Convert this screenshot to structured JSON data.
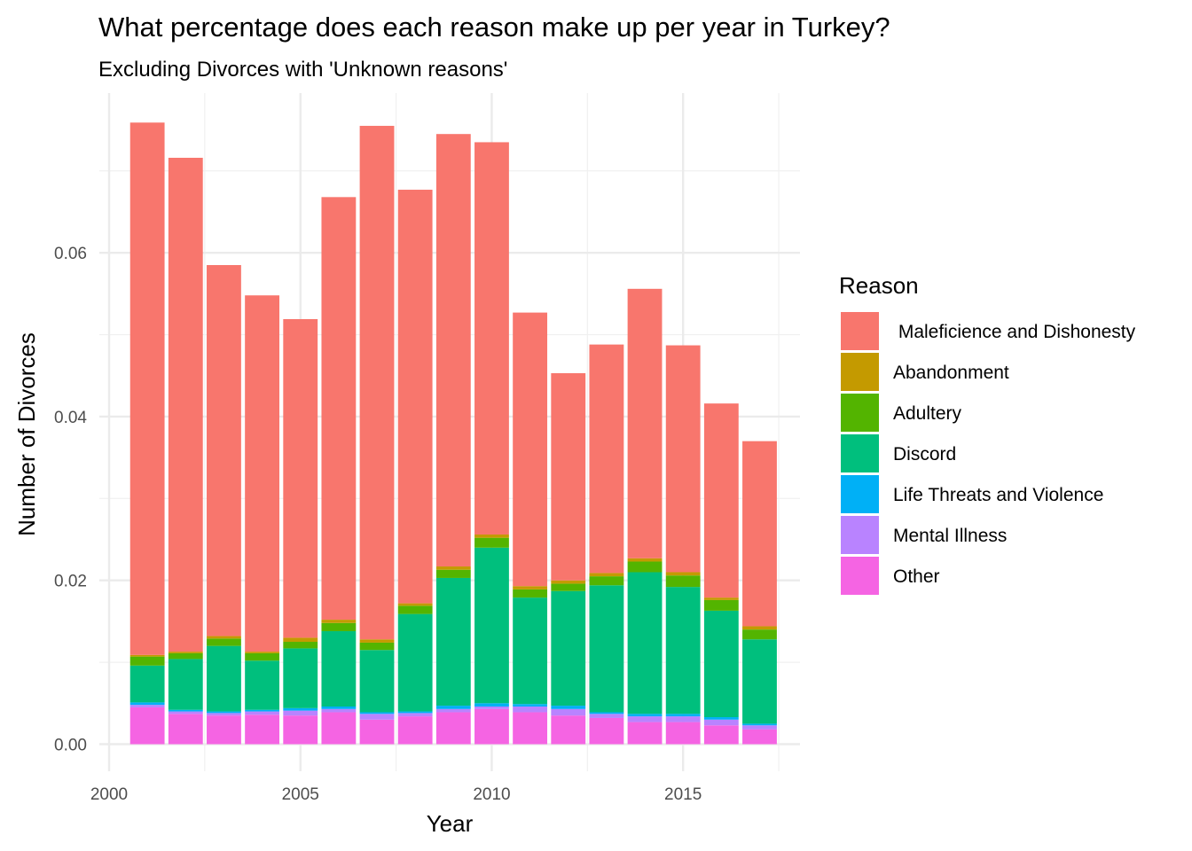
{
  "chart_data": {
    "type": "bar",
    "stacked": true,
    "title": "What percentage does each reason make up per year in Turkey?",
    "subtitle": "Excluding Divorces with 'Unknown reasons'",
    "xlabel": "Year",
    "ylabel": "Number of Divorces",
    "x": [
      2001,
      2002,
      2003,
      2004,
      2005,
      2006,
      2007,
      2008,
      2009,
      2010,
      2011,
      2012,
      2013,
      2014,
      2015,
      2016,
      2017
    ],
    "xlim": [
      2000,
      2017.8
    ],
    "x_ticks": [
      2000,
      2005,
      2010,
      2015
    ],
    "x_tick_labels": [
      "2000",
      "2005",
      "2010",
      "2015"
    ],
    "ylim": [
      -0.0033,
      0.0795
    ],
    "y_ticks": [
      0,
      0.02,
      0.04,
      0.06
    ],
    "y_tick_labels": [
      "0.00",
      "0.02",
      "0.04",
      "0.06"
    ],
    "grid": true,
    "legend_title": "Reason",
    "legend_position": "right",
    "series": [
      {
        "name": "Other",
        "color": "#F564E3",
        "values": [
          0.0045,
          0.0037,
          0.0035,
          0.0036,
          0.0035,
          0.0039,
          0.003,
          0.0034,
          0.0039,
          0.0043,
          0.0039,
          0.0035,
          0.0032,
          0.0027,
          0.0027,
          0.0023,
          0.0018
        ]
      },
      {
        "name": "Mental Illness",
        "color": "#B983FF",
        "values": [
          0.0003,
          0.0003,
          0.0003,
          0.0004,
          0.0006,
          0.0004,
          0.0007,
          0.0004,
          0.0004,
          0.0003,
          0.0007,
          0.0008,
          0.0005,
          0.0007,
          0.0007,
          0.0007,
          0.0005
        ]
      },
      {
        "name": "Life Threats and Violence",
        "color": "#00B0F6",
        "values": [
          0.0003,
          0.0002,
          0.0002,
          0.0002,
          0.0003,
          0.0003,
          0.0002,
          0.0002,
          0.0004,
          0.0004,
          0.0003,
          0.0004,
          0.0002,
          0.0003,
          0.0003,
          0.0003,
          0.0002
        ]
      },
      {
        "name": "Discord",
        "color": "#00BF7D",
        "values": [
          0.0045,
          0.0062,
          0.008,
          0.006,
          0.0073,
          0.0092,
          0.0076,
          0.0119,
          0.0156,
          0.019,
          0.013,
          0.014,
          0.0155,
          0.0173,
          0.0155,
          0.013,
          0.0103
        ]
      },
      {
        "name": "Adultery",
        "color": "#53B400",
        "values": [
          0.0011,
          0.0007,
          0.0009,
          0.0009,
          0.0008,
          0.001,
          0.0009,
          0.001,
          0.001,
          0.0012,
          0.001,
          0.0009,
          0.0011,
          0.0013,
          0.0014,
          0.0013,
          0.0012
        ]
      },
      {
        "name": "Abandonment",
        "color": "#C49A00",
        "values": [
          0.0002,
          0.0002,
          0.0003,
          0.0002,
          0.0005,
          0.0004,
          0.0004,
          0.0003,
          0.0004,
          0.0004,
          0.0004,
          0.0004,
          0.0004,
          0.0004,
          0.0004,
          0.0003,
          0.0004
        ]
      },
      {
        "name": " Maleficience and Dishonesty",
        "color": "#F8766D",
        "values": [
          0.065,
          0.0603,
          0.0453,
          0.0435,
          0.0389,
          0.0516,
          0.0627,
          0.0505,
          0.0528,
          0.0479,
          0.0334,
          0.0253,
          0.0279,
          0.0329,
          0.0277,
          0.0237,
          0.0226
        ]
      }
    ],
    "legend_order": [
      " Maleficience and Dishonesty",
      "Abandonment",
      "Adultery",
      "Discord",
      "Life Threats and Violence",
      "Mental Illness",
      "Other"
    ]
  }
}
